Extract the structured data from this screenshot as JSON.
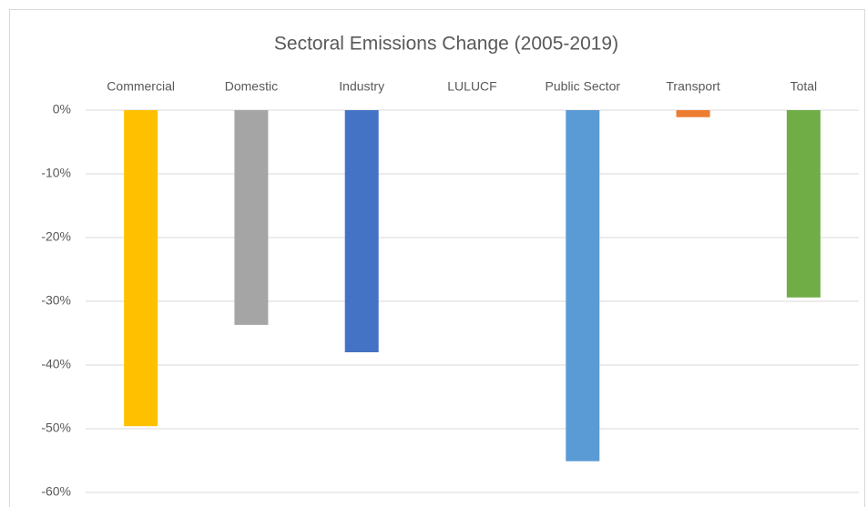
{
  "chart_data": {
    "type": "bar",
    "title": "Sectoral Emissions Change (2005-2019)",
    "categories": [
      "Commercial",
      "Domestic",
      "Industry",
      "LULUCF",
      "Public Sector",
      "Transport",
      "Total"
    ],
    "values": [
      -49.6,
      -33.7,
      -38.0,
      null,
      -55.1,
      -1.1,
      -29.4
    ],
    "colors": [
      "#ffc000",
      "#a5a5a5",
      "#4472c4",
      "#70ad47",
      "#5b9bd5",
      "#ed7d31",
      "#70ad47"
    ],
    "ylim": [
      -60,
      0
    ],
    "yticks": [
      {
        "value": 0,
        "label": "0%"
      },
      {
        "value": -10,
        "label": "-10%"
      },
      {
        "value": -20,
        "label": "-20%"
      },
      {
        "value": -30,
        "label": "-30%"
      },
      {
        "value": -40,
        "label": "-40%"
      },
      {
        "value": -50,
        "label": "-50%"
      },
      {
        "value": -60,
        "label": "-60%"
      }
    ],
    "grid": true
  }
}
